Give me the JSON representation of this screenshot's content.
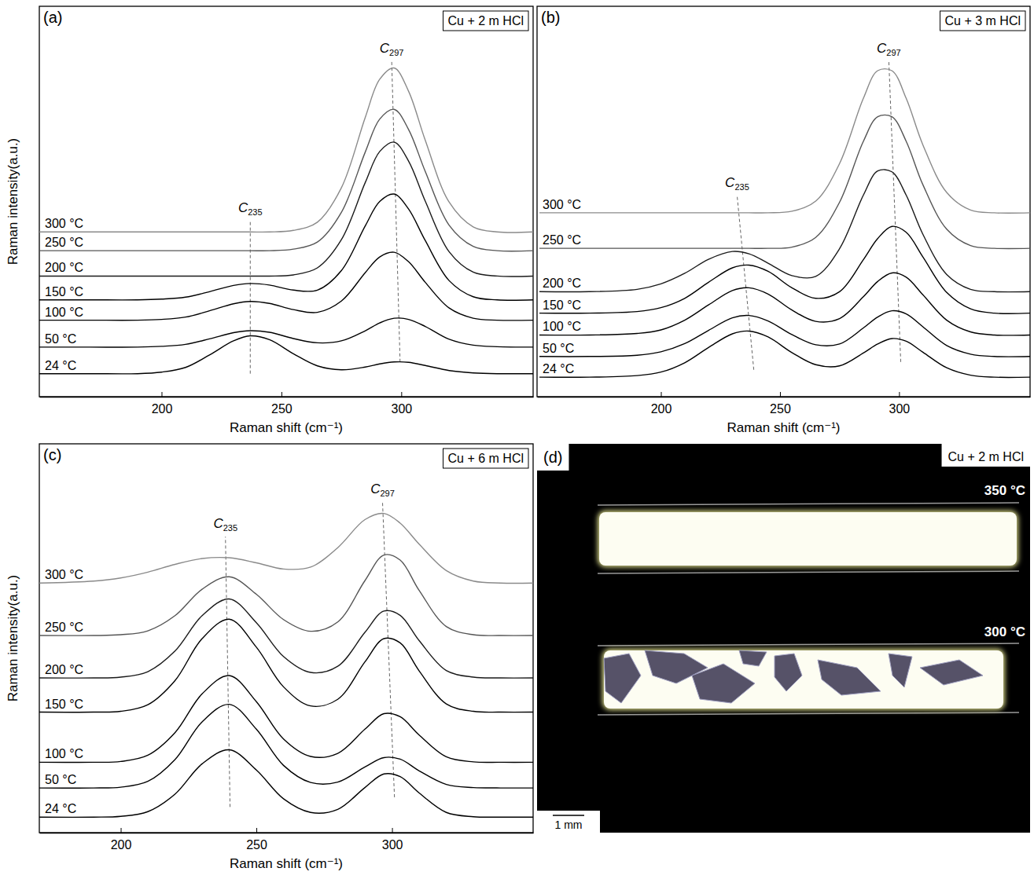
{
  "chart_data": [
    {
      "type": "line",
      "panel_label": "(a)",
      "title": "Cu + 2 m HCl",
      "x_label": "Raman shift (cm⁻¹)",
      "y_label": "Raman intensity(a.u.)",
      "xlim": [
        149,
        355
      ],
      "ylim": [
        0,
        100
      ],
      "xticks": [
        200,
        250,
        300
      ],
      "tick_labels": "x",
      "x": [
        149,
        170,
        190,
        200,
        210,
        220,
        230,
        237,
        245,
        255,
        265,
        275,
        285,
        291,
        297,
        303,
        310,
        320,
        330,
        340,
        355
      ],
      "series": [
        {
          "name": "24 °C",
          "color": "#000000",
          "values": [
            5.9,
            5.9,
            5.9,
            6.3,
            7.5,
            10.7,
            14.3,
            15.6,
            14.6,
            11.0,
            7.9,
            6.9,
            7.6,
            8.4,
            8.9,
            8.8,
            8.0,
            6.7,
            6.1,
            5.9,
            5.9
          ]
        },
        {
          "name": "50 °C",
          "color": "#000000",
          "values": [
            12.7,
            12.7,
            12.7,
            12.9,
            13.4,
            14.8,
            16.4,
            16.9,
            16.5,
            14.9,
            13.8,
            14.3,
            16.9,
            18.9,
            20.1,
            19.8,
            18.0,
            14.7,
            13.2,
            12.8,
            12.7
          ]
        },
        {
          "name": "100 °C",
          "color": "#000000",
          "values": [
            19.6,
            19.6,
            19.6,
            19.8,
            20.4,
            22.0,
            23.8,
            24.4,
            23.9,
            22.3,
            21.6,
            24.5,
            31.8,
            35.8,
            37.0,
            34.6,
            29.3,
            22.7,
            20.1,
            19.6,
            19.6
          ]
        },
        {
          "name": "150 °C",
          "color": "#000000",
          "values": [
            24.8,
            24.8,
            24.8,
            25.0,
            25.5,
            26.9,
            28.5,
            29.0,
            28.6,
            27.3,
            27.3,
            32.3,
            43.8,
            50.0,
            51.9,
            48.1,
            40.0,
            29.7,
            25.6,
            24.8,
            24.8
          ]
        },
        {
          "name": "200 °C",
          "color": "#1a1a1a",
          "values": [
            30.9,
            30.9,
            30.9,
            30.9,
            30.9,
            30.9,
            30.9,
            30.9,
            30.9,
            31.2,
            33.0,
            40.2,
            54.9,
            62.8,
            65.2,
            60.4,
            50.1,
            37.1,
            31.9,
            30.9,
            30.9
          ]
        },
        {
          "name": "250 °C",
          "color": "#555555",
          "values": [
            37.4,
            37.4,
            37.4,
            37.4,
            37.4,
            37.4,
            37.4,
            37.4,
            37.4,
            37.8,
            39.6,
            47.2,
            62.7,
            71.1,
            73.6,
            68.5,
            57.7,
            43.9,
            38.5,
            37.4,
            37.4
          ]
        },
        {
          "name": "300 °C",
          "color": "#8a8a8a",
          "values": [
            42.2,
            42.2,
            42.2,
            42.2,
            42.2,
            42.2,
            42.2,
            42.2,
            42.2,
            42.6,
            44.7,
            53.5,
            71.6,
            81.3,
            84.2,
            78.3,
            65.7,
            49.8,
            43.5,
            42.2,
            42.2
          ]
        }
      ],
      "annotations": [
        {
          "symbol": "C",
          "subscript": "235",
          "x": [
            237,
            237
          ],
          "y": [
            5.9,
            45
          ]
        },
        {
          "symbol": "C",
          "subscript": "297",
          "x": [
            299.5,
            296
          ],
          "y": [
            8.9,
            86
          ]
        }
      ]
    },
    {
      "type": "line",
      "panel_label": "(b)",
      "title": "Cu + 3 m HCl",
      "x_label": "Raman shift (cm⁻¹)",
      "xlim": [
        148,
        355
      ],
      "ylim": [
        0,
        100
      ],
      "xticks": [
        200,
        250,
        300
      ],
      "tick_labels": "x",
      "x": [
        149,
        170,
        190,
        200,
        210,
        220,
        230,
        237,
        245,
        255,
        265,
        275,
        285,
        291,
        297,
        303,
        310,
        320,
        330,
        340,
        355
      ],
      "series": [
        {
          "name": "24 °C",
          "color": "#000000",
          "values": [
            5.0,
            5.0,
            5.4,
            6.3,
            8.7,
            12.6,
            16.1,
            16.8,
            15.3,
            11.3,
            8.2,
            7.9,
            11.2,
            13.5,
            14.9,
            14.2,
            11.4,
            7.4,
            5.5,
            5.0,
            5.0
          ]
        },
        {
          "name": "50 °C",
          "color": "#000000",
          "values": [
            10.3,
            10.3,
            10.6,
            11.5,
            13.6,
            17.0,
            20.2,
            20.8,
            19.4,
            15.9,
            13.3,
            13.5,
            17.6,
            20.4,
            22.0,
            21.2,
            17.9,
            13.1,
            10.9,
            10.3,
            10.3
          ]
        },
        {
          "name": "100 °C",
          "color": "#000000",
          "values": [
            15.8,
            15.8,
            16.2,
            17.1,
            19.6,
            23.5,
            27.2,
            27.9,
            26.3,
            22.2,
            19.3,
            20.0,
            25.6,
            29.5,
            31.7,
            30.6,
            26.1,
            19.6,
            16.6,
            15.8,
            15.8
          ]
        },
        {
          "name": "150 °C",
          "color": "#000000",
          "values": [
            21.4,
            21.4,
            21.8,
            22.8,
            25.2,
            29.3,
            33.0,
            33.7,
            32.1,
            27.9,
            25.2,
            26.9,
            35.1,
            40.5,
            43.6,
            42.1,
            35.8,
            26.7,
            22.5,
            21.4,
            21.4
          ]
        },
        {
          "name": "200 °C",
          "color": "#1a1a1a",
          "values": [
            26.9,
            26.9,
            27.5,
            28.9,
            31.6,
            35.2,
            37.2,
            36.6,
            34.2,
            31.0,
            30.8,
            37.9,
            51.6,
            57.8,
            57.6,
            51.6,
            41.6,
            31.3,
            27.5,
            26.9,
            26.9
          ]
        },
        {
          "name": "250 °C",
          "color": "#555555",
          "values": [
            38.0,
            38.0,
            38.0,
            38.0,
            38.0,
            38.0,
            38.0,
            38.0,
            38.0,
            38.3,
            40.8,
            49.8,
            65.4,
            71.7,
            71.7,
            65.4,
            54.3,
            42.9,
            38.7,
            38.0,
            38.0
          ]
        },
        {
          "name": "300 °C",
          "color": "#8a8a8a",
          "values": [
            47.1,
            47.1,
            47.1,
            47.1,
            47.1,
            47.1,
            47.1,
            47.1,
            47.1,
            47.5,
            50.1,
            59.7,
            76.4,
            83.5,
            83.5,
            76.4,
            64.5,
            52.3,
            47.8,
            47.1,
            47.1
          ]
        }
      ],
      "annotations": [
        {
          "symbol": "C",
          "subscript": "235",
          "x": [
            239,
            232
          ],
          "y": [
            6.9,
            51.5
          ]
        },
        {
          "symbol": "C",
          "subscript": "297",
          "x": [
            300.7,
            295.7
          ],
          "y": [
            8.9,
            86
          ]
        }
      ]
    },
    {
      "type": "line",
      "panel_label": "(c)",
      "title": "Cu + 6 m HCl",
      "x_label": "Raman shift (cm⁻¹)",
      "y_label": "Raman intensity(a.u.)",
      "xlim": [
        170,
        352
      ],
      "ylim": [
        0,
        100
      ],
      "xticks": [
        200,
        250,
        300
      ],
      "tick_labels": "x",
      "x": [
        170,
        190,
        200,
        210,
        220,
        230,
        240,
        250,
        260,
        270,
        280,
        290,
        297,
        303,
        310,
        320,
        330,
        340,
        352
      ],
      "series": [
        {
          "name": "24 °C",
          "color": "#000000",
          "values": [
            4.0,
            4.0,
            4.2,
            5.4,
            9.9,
            17.7,
            21.3,
            16.1,
            8.7,
            5.2,
            6.0,
            11.6,
            15.1,
            14.4,
            10.2,
            5.2,
            4.1,
            4.0,
            4.0
          ]
        },
        {
          "name": "50 °C",
          "color": "#000000",
          "values": [
            11.5,
            11.5,
            11.7,
            13.2,
            18.8,
            28.5,
            33.0,
            26.6,
            17.3,
            12.9,
            13.0,
            16.9,
            19.3,
            18.9,
            15.9,
            12.4,
            11.6,
            11.5,
            11.5
          ]
        },
        {
          "name": "100 °C",
          "color": "#000000",
          "values": [
            18.1,
            18.1,
            18.3,
            19.9,
            25.7,
            35.7,
            40.4,
            33.7,
            24.1,
            19.6,
            20.4,
            26.6,
            30.6,
            29.8,
            25.1,
            19.5,
            18.2,
            18.1,
            18.1
          ]
        },
        {
          "name": "150 °C",
          "color": "#000000",
          "values": [
            31.0,
            31.0,
            31.2,
            32.9,
            39.1,
            49.9,
            54.9,
            47.7,
            37.5,
            32.6,
            34.3,
            43.9,
            49.9,
            48.8,
            41.6,
            33.1,
            31.2,
            31.0,
            31.0
          ]
        },
        {
          "name": "200 °C",
          "color": "#1a1a1a",
          "values": [
            39.8,
            39.8,
            40.0,
            41.4,
            46.7,
            55.8,
            60.1,
            54.0,
            45.3,
            41.2,
            42.8,
            51.5,
            57.0,
            55.9,
            49.4,
            41.7,
            40.0,
            39.8,
            39.8
          ]
        },
        {
          "name": "250 °C",
          "color": "#555555",
          "values": [
            50.7,
            50.7,
            50.9,
            51.9,
            55.8,
            62.6,
            65.8,
            61.3,
            54.8,
            51.8,
            54.2,
            64.8,
            71.4,
            70.1,
            62.3,
            53.0,
            50.9,
            50.7,
            50.7
          ]
        },
        {
          "name": "300 °C",
          "color": "#8a8a8a",
          "values": [
            64.2,
            64.7,
            65.5,
            67.0,
            69.0,
            70.5,
            70.7,
            69.4,
            67.8,
            68.3,
            73.3,
            80.5,
            82.1,
            79.6,
            74.2,
            67.4,
            64.7,
            64.2,
            64.2
          ]
        }
      ],
      "annotations": [
        {
          "symbol": "C",
          "subscript": "235",
          "x": [
            240.3,
            238.6
          ],
          "y": [
            6.6,
            76.1
          ]
        },
        {
          "symbol": "C",
          "subscript": "297",
          "x": [
            300.9,
            296.5
          ],
          "y": [
            9.1,
            85
          ]
        }
      ]
    }
  ],
  "photo_panel": {
    "label": "(d)",
    "title": "Cu + 2 m HCl",
    "captions": [
      "350 °C",
      "300 °C"
    ],
    "scale_bar": "1 mm"
  }
}
